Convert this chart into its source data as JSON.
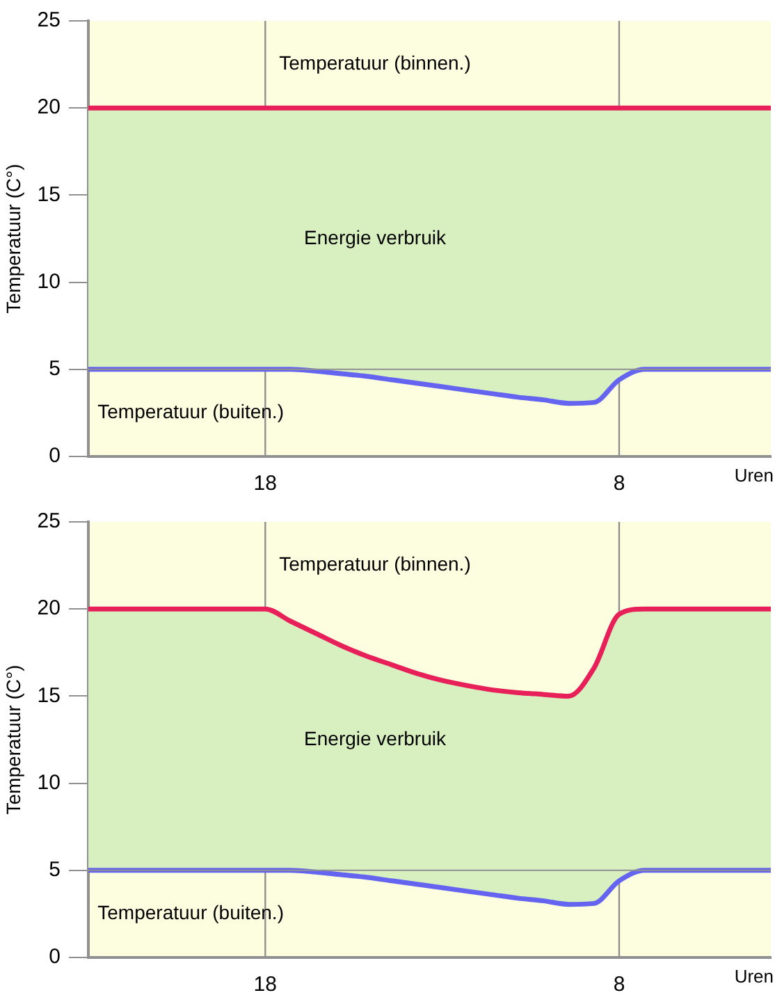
{
  "chart_data": [
    {
      "type": "line",
      "xlabel": "Uren",
      "ylabel": "Temperatuur (C°)",
      "categories": [
        null,
        null,
        null,
        null,
        null,
        null,
        null,
        "18",
        null,
        null,
        null,
        null,
        null,
        null,
        null,
        null,
        null,
        null,
        null,
        null,
        null,
        "8",
        null,
        null,
        null,
        null,
        null,
        null
      ],
      "ylim": [
        0,
        25
      ],
      "yticks": [
        0,
        5,
        10,
        15,
        20,
        25
      ],
      "grid": "x",
      "legend": false,
      "marker": "none",
      "line_style": "solid",
      "series": [
        {
          "color": "#e8205a",
          "values": [
            20,
            20,
            20,
            20,
            20,
            20,
            20,
            20,
            20,
            20,
            20,
            20,
            20,
            20,
            20,
            20,
            20,
            20,
            20,
            20,
            20,
            20,
            20,
            20,
            20,
            20,
            20,
            20
          ],
          "upper": [
            20,
            20,
            20,
            20,
            20,
            20,
            20,
            20,
            20,
            20,
            20,
            20,
            20,
            20,
            20,
            20,
            20,
            20,
            20,
            20,
            20,
            20,
            20,
            20,
            20,
            20,
            20,
            20
          ],
          "lower": [
            5,
            5,
            5,
            5,
            5,
            5,
            5,
            5,
            5,
            4.9,
            4.75,
            4.6,
            4.4,
            4.2,
            4,
            3.8,
            3.6,
            3.4,
            3.25,
            3.05,
            3.1,
            4.4,
            5,
            5,
            5,
            5,
            5,
            5
          ]
        },
        {
          "color": "#6464f0",
          "values": [
            5,
            5,
            5,
            5,
            5,
            5,
            5,
            5,
            5,
            4.9,
            4.75,
            4.6,
            4.4,
            4.2,
            4,
            3.8,
            3.6,
            3.4,
            3.25,
            3.05,
            3.1,
            4.4,
            5,
            5,
            5,
            5,
            5,
            5
          ]
        }
      ],
      "ref_lines": [
        {
          "axis": "y",
          "value": 5,
          "color": "#909090"
        }
      ],
      "annotations": [
        "Temperatuur (binnen.)",
        "Energie verbruik",
        "Temperatuur (buiten.)"
      ]
    },
    {
      "type": "line",
      "xlabel": "Uren",
      "ylabel": "Temperatuur (C°)",
      "categories": [
        null,
        null,
        null,
        null,
        null,
        null,
        null,
        "18",
        null,
        null,
        null,
        null,
        null,
        null,
        null,
        null,
        null,
        null,
        null,
        null,
        null,
        "8",
        null,
        null,
        null,
        null,
        null,
        null
      ],
      "ylim": [
        0,
        25
      ],
      "yticks": [
        0,
        5,
        10,
        15,
        20,
        25
      ],
      "grid": "x",
      "legend": false,
      "marker": "none",
      "line_style": "solid",
      "series": [
        {
          "color": "#e8205a",
          "values": [
            20,
            20,
            20,
            20,
            20,
            20,
            20,
            20,
            19.3,
            18.6,
            17.9,
            17.3,
            16.8,
            16.3,
            15.9,
            15.6,
            15.35,
            15.2,
            15.1,
            15,
            16.6,
            19.7,
            20,
            20,
            20,
            20,
            20,
            20
          ],
          "upper": [
            20,
            20,
            20,
            20,
            20,
            20,
            20,
            20,
            19.3,
            18.6,
            17.9,
            17.3,
            16.8,
            16.3,
            15.9,
            15.6,
            15.35,
            15.2,
            15.1,
            15,
            16.6,
            19.7,
            20,
            20,
            20,
            20,
            20,
            20
          ],
          "lower": [
            5,
            5,
            5,
            5,
            5,
            5,
            5,
            5,
            5,
            4.9,
            4.75,
            4.6,
            4.4,
            4.2,
            4,
            3.8,
            3.6,
            3.4,
            3.25,
            3.05,
            3.1,
            4.4,
            5,
            5,
            5,
            5,
            5,
            5
          ]
        },
        {
          "color": "#6464f0",
          "values": [
            5,
            5,
            5,
            5,
            5,
            5,
            5,
            5,
            5,
            4.9,
            4.75,
            4.6,
            4.4,
            4.2,
            4,
            3.8,
            3.6,
            3.4,
            3.25,
            3.05,
            3.1,
            4.4,
            5,
            5,
            5,
            5,
            5,
            5
          ]
        }
      ],
      "ref_lines": [
        {
          "axis": "y",
          "value": 5,
          "color": "#909090"
        }
      ],
      "annotations": [
        "Temperatuur (binnen.)",
        "Energie verbruik",
        "Temperatuur (buiten.)"
      ]
    }
  ]
}
